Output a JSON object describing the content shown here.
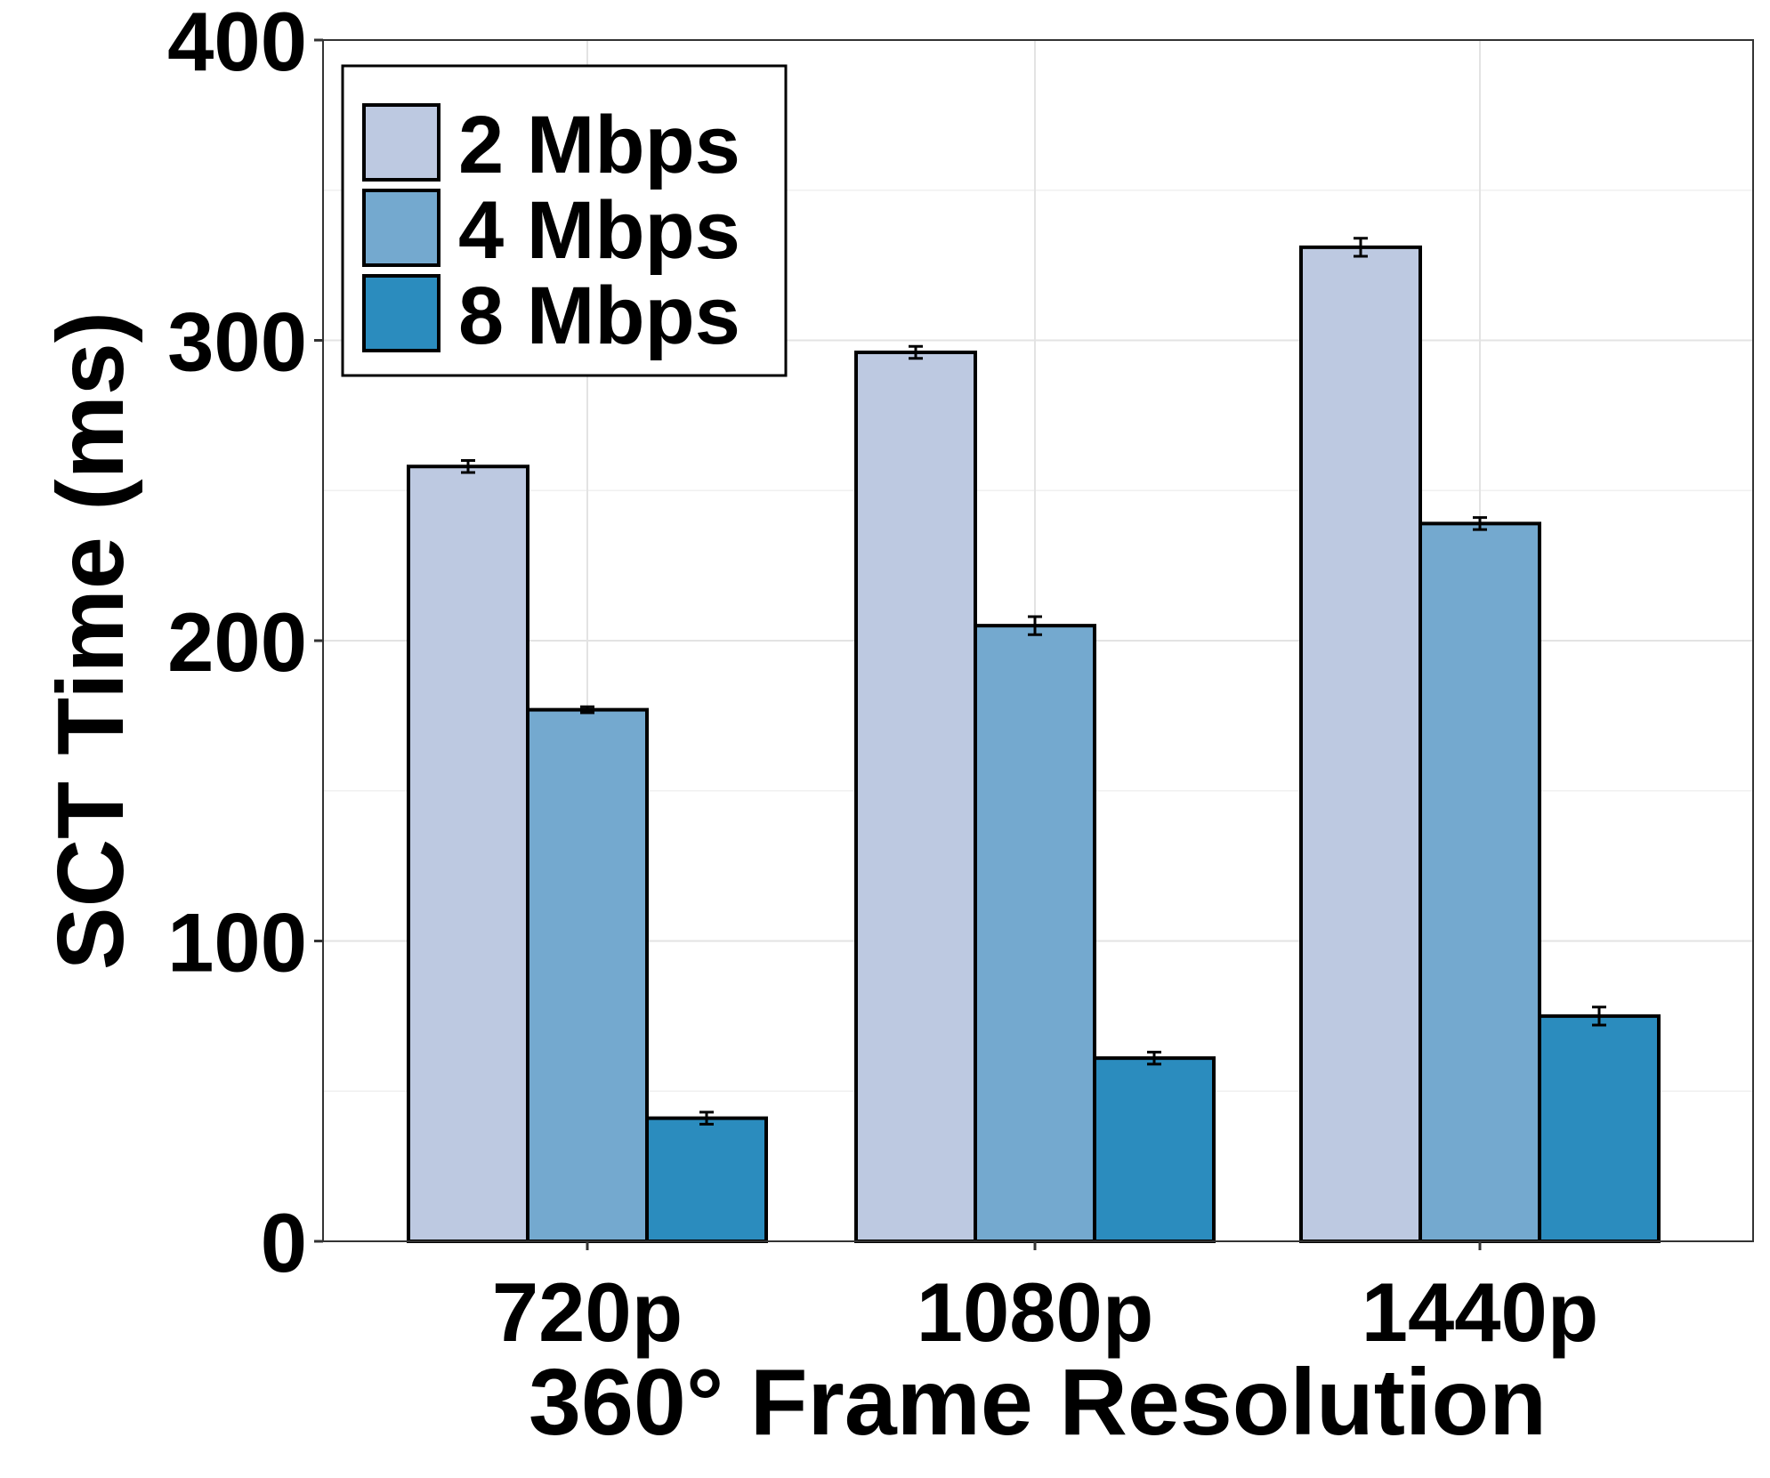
{
  "chart_data": {
    "type": "bar",
    "xlabel": "360° Frame Resolution",
    "ylabel": "SCT Time (ms)",
    "categories": [
      "720p",
      "1080p",
      "1440p"
    ],
    "ylim": [
      0,
      400
    ],
    "yticks": [
      0,
      100,
      200,
      300,
      400
    ],
    "grid": true,
    "legend_position": "top-left",
    "series": [
      {
        "name": "2 Mbps",
        "color": "#bdc9e1",
        "values": [
          258,
          296,
          331
        ],
        "errors": [
          2,
          2,
          3
        ]
      },
      {
        "name": "4 Mbps",
        "color": "#74a9cf",
        "values": [
          177,
          205,
          239
        ],
        "errors": [
          1,
          3,
          2
        ]
      },
      {
        "name": "8 Mbps",
        "color": "#2b8cbe",
        "values": [
          41,
          61,
          75
        ],
        "errors": [
          2,
          2,
          3
        ]
      }
    ]
  }
}
